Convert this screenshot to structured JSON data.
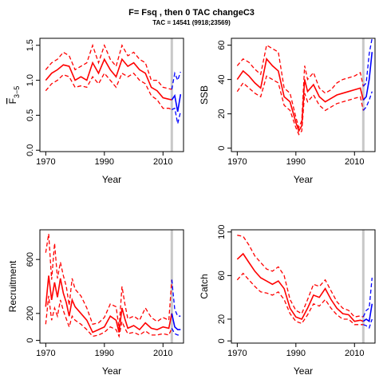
{
  "figure": {
    "title": "F= Fsq , then 0 TAC changeC3",
    "subtitle": "TAC = 14541 (9918;23569)"
  },
  "chart_data": [
    {
      "type": "line",
      "ylabel_main": "F",
      "ylabel_sub": "3−5",
      "xlabel": "Year",
      "xlim": [
        1968,
        2017
      ],
      "ylim": [
        -0.02,
        1.6
      ],
      "xticks": [
        1970,
        1990,
        2010
      ],
      "yticks": [
        0.0,
        0.5,
        1.0,
        1.5
      ],
      "ytick_labels": [
        "0.0",
        "0.5",
        "1.0",
        "1.5"
      ],
      "vline": 2013,
      "colors": {
        "history": "#ff0000",
        "projection": "#0000ff",
        "vline": "#c8c8c8"
      },
      "series": [
        {
          "role": "history-median",
          "x": [
            1970,
            1972,
            1974,
            1976,
            1978,
            1980,
            1982,
            1984,
            1986,
            1988,
            1990,
            1992,
            1994,
            1996,
            1998,
            2000,
            2002,
            2004,
            2006,
            2008,
            2010,
            2012,
            2013
          ],
          "values": [
            1.0,
            1.1,
            1.15,
            1.22,
            1.2,
            1.0,
            1.05,
            1.0,
            1.25,
            1.1,
            1.3,
            1.15,
            1.05,
            1.3,
            1.2,
            1.25,
            1.15,
            1.1,
            0.9,
            0.85,
            0.75,
            0.73,
            0.72
          ]
        },
        {
          "role": "history-upper",
          "x": [
            1970,
            1972,
            1974,
            1976,
            1978,
            1980,
            1982,
            1984,
            1986,
            1988,
            1990,
            1992,
            1994,
            1996,
            1998,
            2000,
            2002,
            2004,
            2006,
            2008,
            2010,
            2012,
            2013
          ],
          "values": [
            1.15,
            1.25,
            1.3,
            1.4,
            1.35,
            1.15,
            1.2,
            1.25,
            1.5,
            1.25,
            1.5,
            1.3,
            1.2,
            1.5,
            1.35,
            1.4,
            1.3,
            1.25,
            1.0,
            1.0,
            0.9,
            0.88,
            0.87
          ]
        },
        {
          "role": "history-lower",
          "x": [
            1970,
            1972,
            1974,
            1976,
            1978,
            1980,
            1982,
            1984,
            1986,
            1988,
            1990,
            1992,
            1994,
            1996,
            1998,
            2000,
            2002,
            2004,
            2006,
            2008,
            2010,
            2012,
            2013
          ],
          "values": [
            0.85,
            0.95,
            1.0,
            1.08,
            1.05,
            0.9,
            0.92,
            0.9,
            1.05,
            0.95,
            1.1,
            1.0,
            0.9,
            1.1,
            1.05,
            1.1,
            1.0,
            0.95,
            0.78,
            0.72,
            0.6,
            0.6,
            0.58
          ]
        },
        {
          "role": "projection-median",
          "x": [
            2013,
            2014,
            2015,
            2016
          ],
          "values": [
            0.72,
            0.78,
            0.55,
            0.8
          ]
        },
        {
          "role": "projection-upper",
          "x": [
            2013,
            2014,
            2015,
            2016
          ],
          "values": [
            0.87,
            1.1,
            1.0,
            1.12
          ]
        },
        {
          "role": "projection-lower",
          "x": [
            2013,
            2014,
            2015,
            2016
          ],
          "values": [
            0.58,
            0.6,
            0.38,
            0.55
          ]
        }
      ]
    },
    {
      "type": "line",
      "ylabel_main": "SSB",
      "ylabel_sub": "",
      "xlabel": "Year",
      "xlim": [
        1968,
        2017
      ],
      "ylim": [
        -2,
        64
      ],
      "xticks": [
        1970,
        1990,
        2010
      ],
      "yticks": [
        0,
        20,
        40,
        60
      ],
      "ytick_labels": [
        "0",
        "20",
        "40",
        "60"
      ],
      "vline": 2013,
      "colors": {
        "history": "#ff0000",
        "projection": "#0000ff",
        "vline": "#c8c8c8"
      },
      "series": [
        {
          "role": "history-median",
          "x": [
            1970,
            1972,
            1974,
            1976,
            1978,
            1980,
            1982,
            1984,
            1986,
            1988,
            1990,
            1991,
            1992,
            1993,
            1994,
            1996,
            1998,
            2000,
            2002,
            2004,
            2006,
            2008,
            2010,
            2012,
            2013
          ],
          "values": [
            40,
            45,
            42,
            38,
            35,
            52,
            48,
            45,
            30,
            27,
            15,
            10,
            13,
            40,
            33,
            37,
            30,
            27,
            29,
            31,
            32,
            33,
            34,
            35,
            28
          ]
        },
        {
          "role": "history-upper",
          "x": [
            1970,
            1972,
            1974,
            1976,
            1978,
            1980,
            1982,
            1984,
            1986,
            1988,
            1990,
            1991,
            1992,
            1993,
            1994,
            1996,
            1998,
            2000,
            2002,
            2004,
            2006,
            2008,
            2010,
            2012,
            2013
          ],
          "values": [
            48,
            52,
            50,
            46,
            43,
            60,
            58,
            56,
            35,
            32,
            18,
            12,
            16,
            48,
            40,
            44,
            35,
            32,
            34,
            38,
            40,
            41,
            42,
            44,
            36
          ]
        },
        {
          "role": "history-lower",
          "x": [
            1970,
            1972,
            1974,
            1976,
            1978,
            1980,
            1982,
            1984,
            1986,
            1988,
            1990,
            1991,
            1992,
            1993,
            1994,
            1996,
            1998,
            2000,
            2002,
            2004,
            2006,
            2008,
            2010,
            2012,
            2013
          ],
          "values": [
            33,
            38,
            35,
            32,
            30,
            42,
            40,
            38,
            25,
            22,
            12,
            8,
            10,
            32,
            27,
            31,
            25,
            22,
            24,
            26,
            27,
            28,
            29,
            30,
            22
          ]
        },
        {
          "role": "projection-median",
          "x": [
            2013,
            2014,
            2015,
            2016
          ],
          "values": [
            28,
            30,
            40,
            56
          ]
        },
        {
          "role": "projection-upper",
          "x": [
            2013,
            2014,
            2015,
            2016
          ],
          "values": [
            36,
            38,
            55,
            64
          ]
        },
        {
          "role": "projection-lower",
          "x": [
            2013,
            2014,
            2015,
            2016
          ],
          "values": [
            22,
            24,
            28,
            33
          ]
        }
      ]
    },
    {
      "type": "line",
      "ylabel_main": "Recruitment",
      "ylabel_sub": "",
      "xlabel": "Year",
      "xlim": [
        1968,
        2017
      ],
      "ylim": [
        -20,
        820
      ],
      "xticks": [
        1970,
        1990,
        2010
      ],
      "yticks": [
        0,
        200,
        600
      ],
      "ytick_labels": [
        "0",
        "200",
        "600"
      ],
      "vline": 2013,
      "colors": {
        "history": "#ff0000",
        "projection": "#0000ff",
        "vline": "#c8c8c8"
      },
      "series": [
        {
          "role": "history-median",
          "x": [
            1970,
            1971,
            1972,
            1973,
            1974,
            1975,
            1976,
            1977,
            1978,
            1979,
            1980,
            1982,
            1984,
            1986,
            1988,
            1990,
            1992,
            1994,
            1995,
            1996,
            1997,
            1998,
            2000,
            2002,
            2004,
            2006,
            2008,
            2010,
            2012,
            2013
          ],
          "values": [
            250,
            480,
            300,
            430,
            320,
            460,
            350,
            280,
            180,
            300,
            250,
            200,
            150,
            60,
            80,
            100,
            180,
            150,
            60,
            240,
            160,
            90,
            110,
            80,
            130,
            90,
            80,
            100,
            90,
            200
          ]
        },
        {
          "role": "history-upper",
          "x": [
            1970,
            1971,
            1972,
            1973,
            1974,
            1975,
            1976,
            1977,
            1978,
            1979,
            1980,
            1982,
            1984,
            1986,
            1988,
            1990,
            1992,
            1994,
            1995,
            1996,
            1997,
            1998,
            2000,
            2002,
            2004,
            2006,
            2008,
            2010,
            2012,
            2013
          ],
          "values": [
            650,
            790,
            450,
            720,
            460,
            580,
            480,
            400,
            260,
            460,
            380,
            330,
            240,
            120,
            130,
            170,
            270,
            250,
            90,
            400,
            270,
            160,
            180,
            150,
            240,
            170,
            140,
            170,
            150,
            450
          ]
        },
        {
          "role": "history-lower",
          "x": [
            1970,
            1971,
            1972,
            1973,
            1974,
            1975,
            1976,
            1977,
            1978,
            1979,
            1980,
            1982,
            1984,
            1986,
            1988,
            1990,
            1992,
            1994,
            1995,
            1996,
            1997,
            1998,
            2000,
            2002,
            2004,
            2006,
            2008,
            2010,
            2012,
            2013
          ],
          "values": [
            120,
            330,
            150,
            240,
            180,
            300,
            220,
            160,
            100,
            180,
            150,
            120,
            80,
            30,
            40,
            60,
            100,
            80,
            30,
            140,
            90,
            50,
            60,
            40,
            70,
            40,
            40,
            50,
            40,
            90
          ]
        },
        {
          "role": "projection-median",
          "x": [
            2013,
            2014,
            2015,
            2016
          ],
          "values": [
            200,
            100,
            80,
            80
          ]
        },
        {
          "role": "projection-upper",
          "x": [
            2013,
            2014,
            2015,
            2016
          ],
          "values": [
            450,
            230,
            180,
            180
          ]
        },
        {
          "role": "projection-lower",
          "x": [
            2013,
            2014,
            2015,
            2016
          ],
          "values": [
            90,
            50,
            40,
            40
          ]
        }
      ]
    },
    {
      "type": "line",
      "ylabel_main": "Catch",
      "ylabel_sub": "",
      "xlabel": "Year",
      "xlim": [
        1968,
        2017
      ],
      "ylim": [
        -2,
        102
      ],
      "xticks": [
        1970,
        1990,
        2010
      ],
      "yticks": [
        0,
        20,
        60,
        100
      ],
      "ytick_labels": [
        "0",
        "20",
        "60",
        "100"
      ],
      "vline": 2013,
      "colors": {
        "history": "#ff0000",
        "projection": "#0000ff",
        "vline": "#c8c8c8"
      },
      "series": [
        {
          "role": "history-median",
          "x": [
            1970,
            1972,
            1974,
            1976,
            1978,
            1980,
            1982,
            1984,
            1986,
            1988,
            1990,
            1992,
            1994,
            1996,
            1998,
            2000,
            2002,
            2004,
            2006,
            2008,
            2010,
            2012,
            2013
          ],
          "values": [
            75,
            80,
            72,
            64,
            58,
            55,
            52,
            55,
            48,
            30,
            22,
            20,
            30,
            42,
            40,
            48,
            38,
            30,
            25,
            24,
            18,
            19,
            18
          ]
        },
        {
          "role": "history-upper",
          "x": [
            1970,
            1972,
            1974,
            1976,
            1978,
            1980,
            1982,
            1984,
            1986,
            1988,
            1990,
            1992,
            1994,
            1996,
            1998,
            2000,
            2002,
            2004,
            2006,
            2008,
            2010,
            2012,
            2013
          ],
          "values": [
            97,
            96,
            88,
            78,
            72,
            66,
            64,
            68,
            60,
            38,
            28,
            25,
            38,
            52,
            50,
            56,
            46,
            36,
            30,
            28,
            22,
            23,
            22
          ]
        },
        {
          "role": "history-lower",
          "x": [
            1970,
            1972,
            1974,
            1976,
            1978,
            1980,
            1982,
            1984,
            1986,
            1988,
            1990,
            1992,
            1994,
            1996,
            1998,
            2000,
            2002,
            2004,
            2006,
            2008,
            2010,
            2012,
            2013
          ],
          "values": [
            56,
            62,
            56,
            50,
            45,
            44,
            42,
            45,
            38,
            25,
            18,
            16,
            24,
            34,
            32,
            38,
            30,
            24,
            20,
            20,
            15,
            15,
            15
          ]
        },
        {
          "role": "projection-median",
          "x": [
            2013,
            2014,
            2015,
            2016
          ],
          "values": [
            18,
            20,
            18,
            34
          ]
        },
        {
          "role": "projection-upper",
          "x": [
            2013,
            2014,
            2015,
            2016
          ],
          "values": [
            22,
            28,
            30,
            58
          ]
        },
        {
          "role": "projection-lower",
          "x": [
            2013,
            2014,
            2015,
            2016
          ],
          "values": [
            15,
            14,
            12,
            20
          ]
        }
      ]
    }
  ]
}
